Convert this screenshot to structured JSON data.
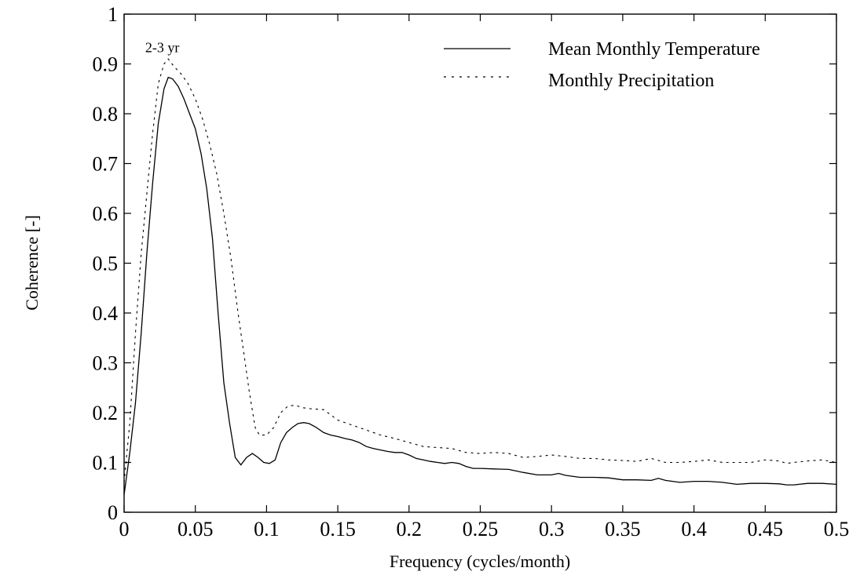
{
  "chart_data": {
    "type": "line",
    "title": "",
    "xlabel": "Frequency (cycles/month)",
    "ylabel": "Coherence [-]",
    "xlim": [
      0,
      0.5
    ],
    "ylim": [
      0,
      1
    ],
    "grid": false,
    "legend_position": "top-right",
    "x_ticks": [
      "0",
      "0.05",
      "0.1",
      "0.15",
      "0.2",
      "0.25",
      "0.3",
      "0.35",
      "0.4",
      "0.45",
      "0.5"
    ],
    "y_ticks": [
      "0",
      "0.1",
      "0.2",
      "0.3",
      "0.4",
      "0.5",
      "0.6",
      "0.7",
      "0.8",
      "0.9",
      "1"
    ],
    "annotations": [
      {
        "text": "2-3 yr",
        "x": 0.029,
        "y": 0.93
      }
    ],
    "series": [
      {
        "name": "Mean Monthly Temperature",
        "style": "solid",
        "color": "#000000",
        "points": [
          [
            0,
            0.035
          ],
          [
            0.004,
            0.12
          ],
          [
            0.008,
            0.22
          ],
          [
            0.012,
            0.36
          ],
          [
            0.016,
            0.52
          ],
          [
            0.02,
            0.66
          ],
          [
            0.024,
            0.78
          ],
          [
            0.028,
            0.85
          ],
          [
            0.031,
            0.873
          ],
          [
            0.034,
            0.87
          ],
          [
            0.038,
            0.855
          ],
          [
            0.042,
            0.83
          ],
          [
            0.046,
            0.8
          ],
          [
            0.05,
            0.77
          ],
          [
            0.054,
            0.72
          ],
          [
            0.058,
            0.65
          ],
          [
            0.062,
            0.55
          ],
          [
            0.066,
            0.4
          ],
          [
            0.07,
            0.26
          ],
          [
            0.074,
            0.18
          ],
          [
            0.078,
            0.11
          ],
          [
            0.082,
            0.095
          ],
          [
            0.086,
            0.11
          ],
          [
            0.09,
            0.118
          ],
          [
            0.094,
            0.11
          ],
          [
            0.098,
            0.1
          ],
          [
            0.102,
            0.098
          ],
          [
            0.106,
            0.105
          ],
          [
            0.11,
            0.14
          ],
          [
            0.114,
            0.16
          ],
          [
            0.118,
            0.17
          ],
          [
            0.122,
            0.178
          ],
          [
            0.126,
            0.18
          ],
          [
            0.13,
            0.178
          ],
          [
            0.135,
            0.17
          ],
          [
            0.14,
            0.16
          ],
          [
            0.145,
            0.155
          ],
          [
            0.15,
            0.152
          ],
          [
            0.155,
            0.148
          ],
          [
            0.16,
            0.145
          ],
          [
            0.165,
            0.14
          ],
          [
            0.17,
            0.132
          ],
          [
            0.175,
            0.128
          ],
          [
            0.18,
            0.125
          ],
          [
            0.185,
            0.122
          ],
          [
            0.19,
            0.12
          ],
          [
            0.195,
            0.12
          ],
          [
            0.2,
            0.115
          ],
          [
            0.205,
            0.108
          ],
          [
            0.21,
            0.105
          ],
          [
            0.215,
            0.102
          ],
          [
            0.22,
            0.1
          ],
          [
            0.225,
            0.098
          ],
          [
            0.23,
            0.1
          ],
          [
            0.235,
            0.098
          ],
          [
            0.24,
            0.092
          ],
          [
            0.245,
            0.088
          ],
          [
            0.25,
            0.088
          ],
          [
            0.26,
            0.087
          ],
          [
            0.27,
            0.086
          ],
          [
            0.28,
            0.08
          ],
          [
            0.29,
            0.075
          ],
          [
            0.3,
            0.075
          ],
          [
            0.305,
            0.078
          ],
          [
            0.31,
            0.074
          ],
          [
            0.32,
            0.07
          ],
          [
            0.33,
            0.07
          ],
          [
            0.34,
            0.069
          ],
          [
            0.35,
            0.065
          ],
          [
            0.36,
            0.065
          ],
          [
            0.37,
            0.064
          ],
          [
            0.375,
            0.068
          ],
          [
            0.38,
            0.064
          ],
          [
            0.39,
            0.06
          ],
          [
            0.4,
            0.062
          ],
          [
            0.41,
            0.062
          ],
          [
            0.42,
            0.06
          ],
          [
            0.43,
            0.056
          ],
          [
            0.44,
            0.058
          ],
          [
            0.45,
            0.058
          ],
          [
            0.46,
            0.057
          ],
          [
            0.465,
            0.055
          ],
          [
            0.47,
            0.055
          ],
          [
            0.48,
            0.058
          ],
          [
            0.49,
            0.058
          ],
          [
            0.5,
            0.056
          ]
        ]
      },
      {
        "name": "Monthly Precipitation",
        "style": "dashed",
        "color": "#000000",
        "points": [
          [
            0,
            0.06
          ],
          [
            0.004,
            0.18
          ],
          [
            0.008,
            0.36
          ],
          [
            0.012,
            0.52
          ],
          [
            0.016,
            0.64
          ],
          [
            0.02,
            0.76
          ],
          [
            0.024,
            0.86
          ],
          [
            0.028,
            0.9
          ],
          [
            0.031,
            0.91
          ],
          [
            0.035,
            0.895
          ],
          [
            0.04,
            0.88
          ],
          [
            0.045,
            0.86
          ],
          [
            0.05,
            0.83
          ],
          [
            0.055,
            0.79
          ],
          [
            0.06,
            0.74
          ],
          [
            0.065,
            0.68
          ],
          [
            0.07,
            0.6
          ],
          [
            0.075,
            0.51
          ],
          [
            0.08,
            0.4
          ],
          [
            0.085,
            0.3
          ],
          [
            0.088,
            0.24
          ],
          [
            0.092,
            0.17
          ],
          [
            0.095,
            0.155
          ],
          [
            0.1,
            0.155
          ],
          [
            0.105,
            0.17
          ],
          [
            0.11,
            0.2
          ],
          [
            0.115,
            0.213
          ],
          [
            0.12,
            0.215
          ],
          [
            0.125,
            0.21
          ],
          [
            0.13,
            0.208
          ],
          [
            0.14,
            0.206
          ],
          [
            0.15,
            0.185
          ],
          [
            0.16,
            0.175
          ],
          [
            0.17,
            0.165
          ],
          [
            0.18,
            0.155
          ],
          [
            0.19,
            0.148
          ],
          [
            0.2,
            0.14
          ],
          [
            0.21,
            0.132
          ],
          [
            0.22,
            0.13
          ],
          [
            0.23,
            0.128
          ],
          [
            0.24,
            0.12
          ],
          [
            0.25,
            0.118
          ],
          [
            0.26,
            0.12
          ],
          [
            0.27,
            0.118
          ],
          [
            0.28,
            0.11
          ],
          [
            0.29,
            0.112
          ],
          [
            0.3,
            0.115
          ],
          [
            0.31,
            0.112
          ],
          [
            0.32,
            0.108
          ],
          [
            0.33,
            0.108
          ],
          [
            0.34,
            0.105
          ],
          [
            0.35,
            0.104
          ],
          [
            0.36,
            0.102
          ],
          [
            0.37,
            0.108
          ],
          [
            0.38,
            0.1
          ],
          [
            0.39,
            0.1
          ],
          [
            0.4,
            0.102
          ],
          [
            0.41,
            0.105
          ],
          [
            0.42,
            0.1
          ],
          [
            0.43,
            0.1
          ],
          [
            0.44,
            0.1
          ],
          [
            0.45,
            0.105
          ],
          [
            0.46,
            0.103
          ],
          [
            0.465,
            0.098
          ],
          [
            0.47,
            0.1
          ],
          [
            0.48,
            0.103
          ],
          [
            0.49,
            0.105
          ],
          [
            0.5,
            0.1
          ]
        ]
      }
    ]
  }
}
